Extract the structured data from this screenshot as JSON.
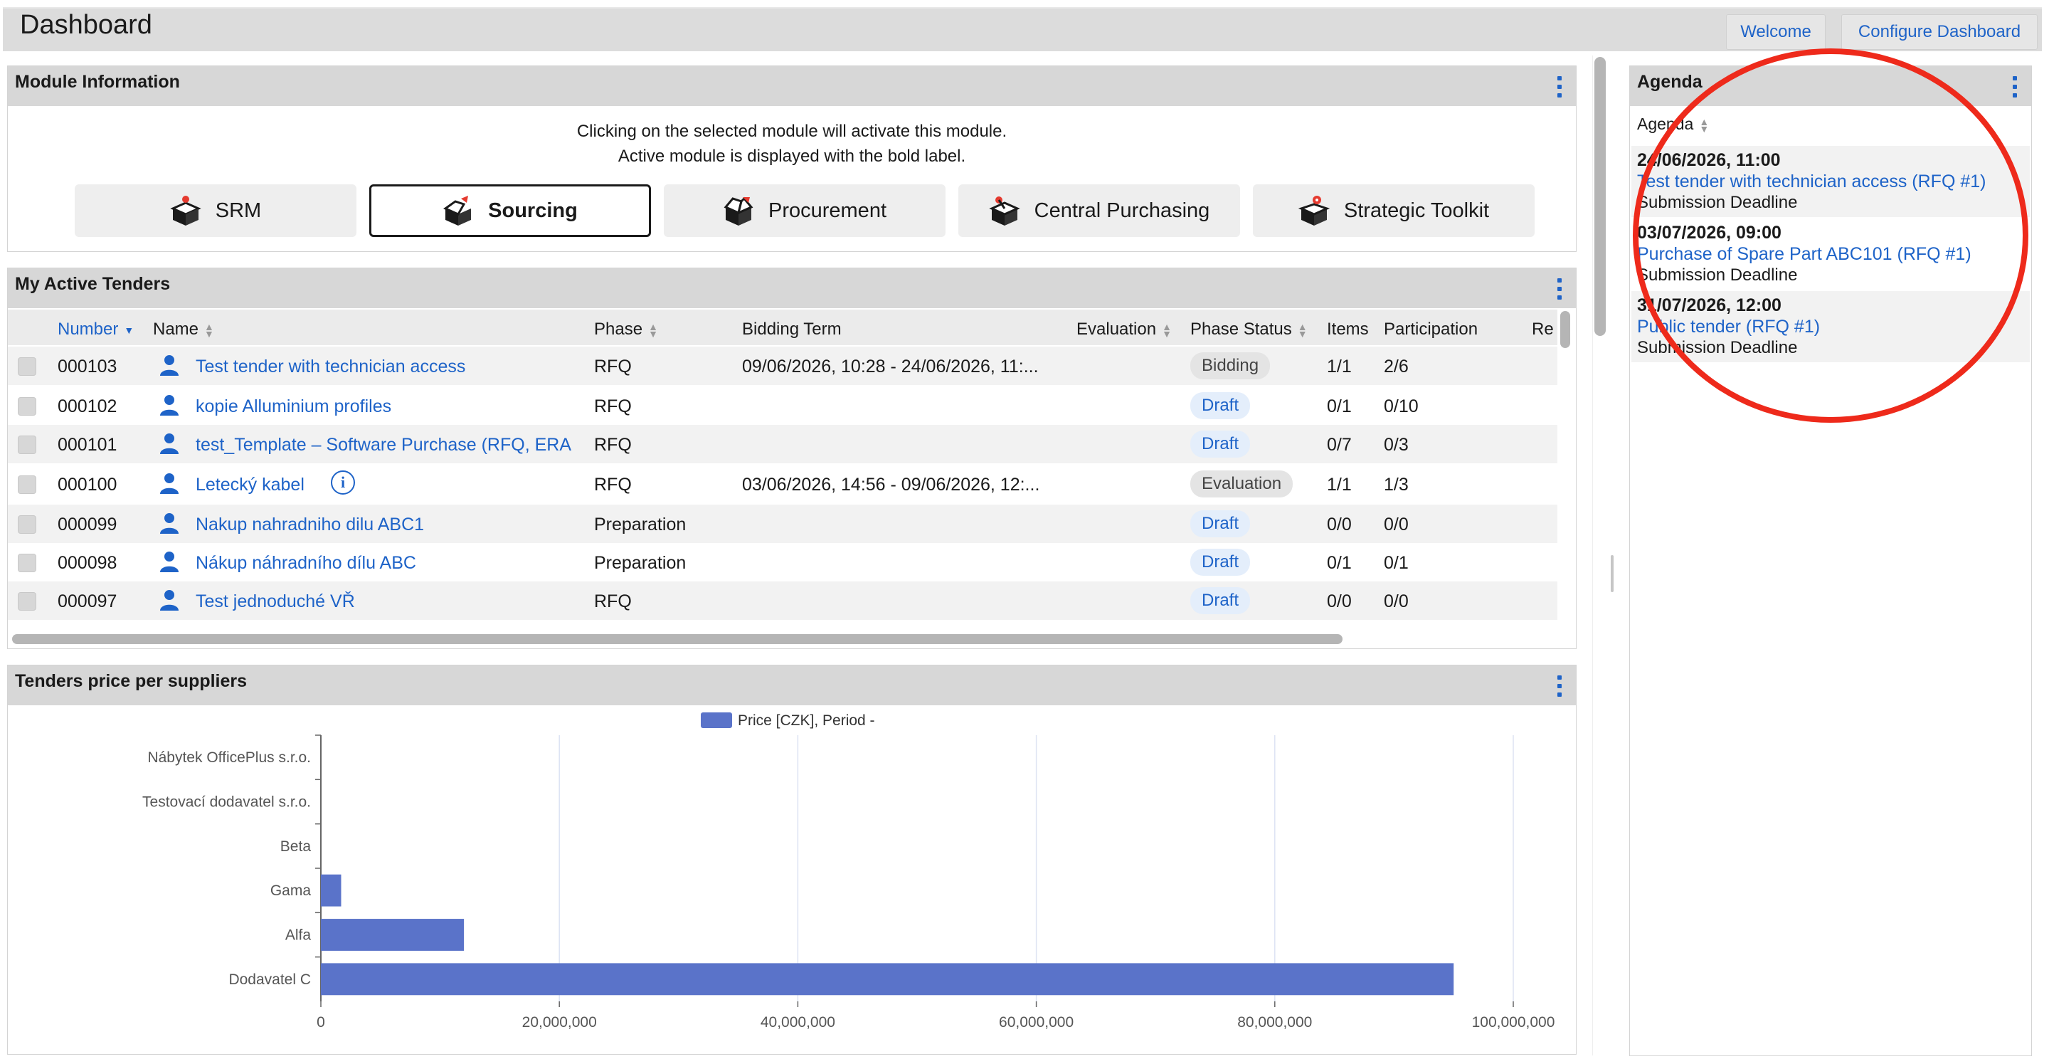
{
  "header": {
    "title": "Dashboard",
    "welcome": "Welcome",
    "configure": "Configure Dashboard"
  },
  "module_info": {
    "title": "Module Information",
    "info_line1": "Clicking on the selected module will activate this module.",
    "info_line2": "Active module is displayed with the bold label.",
    "modules": [
      {
        "label": "SRM",
        "icon": "srm-box-icon"
      },
      {
        "label": "Sourcing",
        "icon": "sourcing-box-icon",
        "active": true
      },
      {
        "label": "Procurement",
        "icon": "procurement-box-icon"
      },
      {
        "label": "Central Purchasing",
        "icon": "central-purchasing-box-icon"
      },
      {
        "label": "Strategic Toolkit",
        "icon": "strategic-toolkit-box-icon"
      }
    ]
  },
  "tenders": {
    "title": "My Active Tenders",
    "columns": {
      "number": "Number",
      "name": "Name",
      "phase": "Phase",
      "bidding_term": "Bidding Term",
      "evaluation": "Evaluation",
      "phase_status": "Phase Status",
      "items": "Items",
      "participation": "Participation",
      "more": "Re"
    },
    "rows": [
      {
        "number": "000103",
        "name": "Test tender with technician access",
        "phase": "RFQ",
        "bidding_term": "09/06/2026, 10:28 - 24/06/2026, 11:...",
        "status": "Bidding",
        "items": "1/1",
        "participation": "2/6"
      },
      {
        "number": "000102",
        "name": "kopie Alluminium profiles",
        "phase": "RFQ",
        "bidding_term": "",
        "status": "Draft",
        "items": "0/1",
        "participation": "0/10"
      },
      {
        "number": "000101",
        "name": "test_Template – Software Purchase (RFQ, ERA",
        "phase": "RFQ",
        "bidding_term": "",
        "status": "Draft",
        "items": "0/7",
        "participation": "0/3"
      },
      {
        "number": "000100",
        "name": "Letecký kabel",
        "phase": "RFQ",
        "bidding_term": "03/06/2026, 14:56 - 09/06/2026, 12:...",
        "status": "Evaluation",
        "items": "1/1",
        "participation": "1/3",
        "info": "i"
      },
      {
        "number": "000099",
        "name": "Nakup nahradniho dilu ABC1",
        "phase": "Preparation",
        "bidding_term": "",
        "status": "Draft",
        "items": "0/0",
        "participation": "0/0"
      },
      {
        "number": "000098",
        "name": "Nákup náhradního dílu ABC",
        "phase": "Preparation",
        "bidding_term": "",
        "status": "Draft",
        "items": "0/1",
        "participation": "0/1"
      },
      {
        "number": "000097",
        "name": "Test jednoduché VŘ",
        "phase": "RFQ",
        "bidding_term": "",
        "status": "Draft",
        "items": "0/0",
        "participation": "0/0"
      }
    ]
  },
  "chart_panel": {
    "title": "Tenders price per suppliers"
  },
  "chart_data": {
    "type": "bar",
    "orientation": "horizontal",
    "legend": "Price [CZK], Period  -",
    "legend_placement": "top",
    "categories": [
      "Nábytek OfficePlus s.r.o.",
      "Testovací dodavatel s.r.o.",
      "Beta",
      "Gama",
      "Alfa",
      "Dodavatel C"
    ],
    "values": [
      0,
      0,
      0,
      1700000,
      12000000,
      95000000
    ],
    "xlim": [
      0,
      100000000
    ],
    "xticks": [
      "0",
      "20,000,000",
      "40,000,000",
      "60,000,000",
      "80,000,000",
      "100,000,000"
    ],
    "bar_color": "#5a73c9",
    "grid": true
  },
  "agenda": {
    "title": "Agenda",
    "sub_label": "Agenda",
    "items": [
      {
        "date": "24/06/2026, 11:00",
        "link": "Test tender with technician access (RFQ #1)",
        "desc": "Submission Deadline"
      },
      {
        "date": "03/07/2026, 09:00",
        "link": "Purchase of Spare Part ABC101 (RFQ #1)",
        "desc": "Submission Deadline"
      },
      {
        "date": "31/07/2026, 12:00",
        "link": "Public tender (RFQ #1)",
        "desc": "Submission Deadline"
      }
    ]
  },
  "colors": {
    "accent": "#1e63c8",
    "annotation": "#ee2a1b",
    "header_bg": "#d7d7d7"
  }
}
